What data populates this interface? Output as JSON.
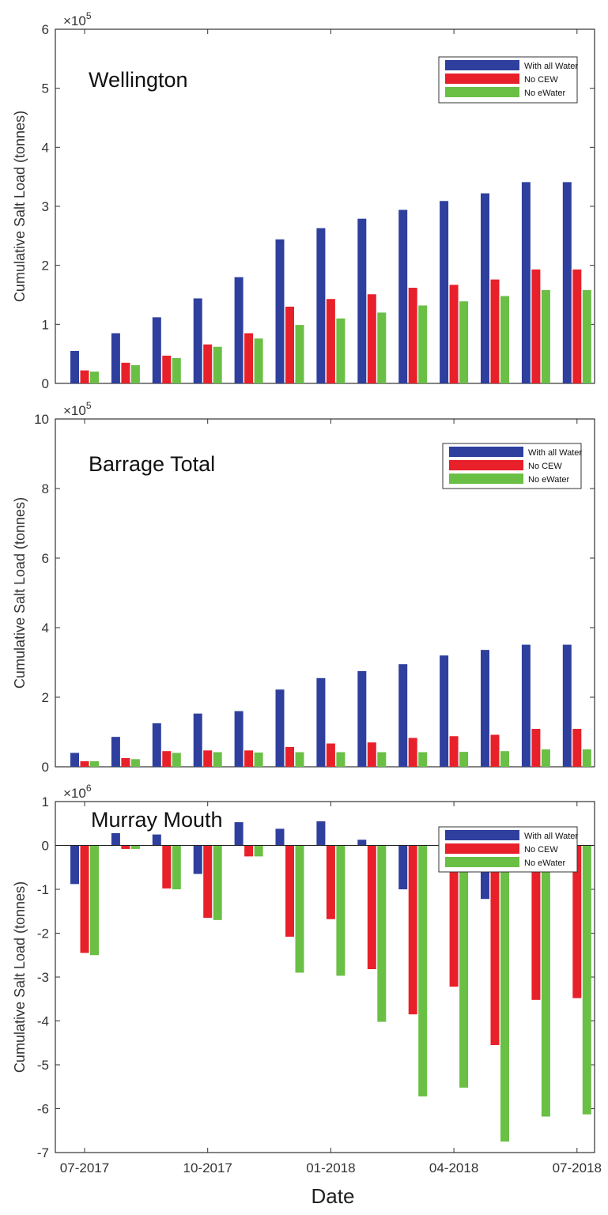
{
  "chart_data": [
    {
      "type": "bar",
      "title": "Wellington",
      "ylabel": "Cumulative Salt Load  (tonnes)",
      "exponent_base": "×10",
      "exponent_power": "5",
      "ylim": [
        0,
        6
      ],
      "yticks": [
        0,
        1,
        2,
        3,
        4,
        5,
        6
      ],
      "x": [
        "Jul 2017",
        "Aug 2017",
        "Sep 2017",
        "Oct 2017",
        "Nov 2017",
        "Dec 2017",
        "Jan 2018",
        "Feb 2018",
        "Mar 2018",
        "Apr 2018",
        "May 2018",
        "Jun 2018",
        "Jul 2018"
      ],
      "legend_position": "top-right",
      "series": [
        {
          "name": "With all Water",
          "color": "#2e3f9e",
          "values": [
            0.55,
            0.85,
            1.12,
            1.44,
            1.8,
            2.44,
            2.63,
            2.79,
            2.94,
            3.09,
            3.22,
            3.41,
            3.41
          ]
        },
        {
          "name": "No CEW",
          "color": "#e8202a",
          "values": [
            0.22,
            0.35,
            0.47,
            0.66,
            0.85,
            1.3,
            1.43,
            1.51,
            1.62,
            1.67,
            1.76,
            1.93,
            1.93
          ]
        },
        {
          "name": "No eWater",
          "color": "#6abf45",
          "values": [
            0.2,
            0.31,
            0.43,
            0.62,
            0.76,
            0.99,
            1.1,
            1.2,
            1.32,
            1.39,
            1.48,
            1.58,
            1.58
          ]
        }
      ]
    },
    {
      "type": "bar",
      "title": "Barrage Total",
      "ylabel": "Cumulative Salt Load  (tonnes)",
      "exponent_base": "×10",
      "exponent_power": "5",
      "ylim": [
        0,
        10
      ],
      "yticks": [
        0,
        2,
        4,
        6,
        8,
        10
      ],
      "x": [
        "Jul 2017",
        "Aug 2017",
        "Sep 2017",
        "Oct 2017",
        "Nov 2017",
        "Dec 2017",
        "Jan 2018",
        "Feb 2018",
        "Mar 2018",
        "Apr 2018",
        "May 2018",
        "Jun 2018",
        "Jul 2018"
      ],
      "legend_position": "top-right",
      "series": [
        {
          "name": "With all Water",
          "color": "#2e3f9e",
          "values": [
            0.4,
            0.86,
            1.25,
            1.53,
            1.6,
            2.22,
            2.55,
            2.75,
            2.95,
            3.2,
            3.36,
            3.51,
            3.51
          ]
        },
        {
          "name": "No CEW",
          "color": "#e8202a",
          "values": [
            0.16,
            0.25,
            0.45,
            0.47,
            0.47,
            0.57,
            0.67,
            0.7,
            0.83,
            0.88,
            0.92,
            1.09,
            1.09
          ]
        },
        {
          "name": "No eWater",
          "color": "#6abf45",
          "values": [
            0.16,
            0.22,
            0.4,
            0.42,
            0.41,
            0.42,
            0.42,
            0.42,
            0.42,
            0.43,
            0.45,
            0.5,
            0.5
          ]
        }
      ]
    },
    {
      "type": "bar",
      "title": "Murray Mouth",
      "ylabel": "Cumulative Salt Load  (tonnes)",
      "xlabel": "Date",
      "exponent_base": "×10",
      "exponent_power": "6",
      "ylim": [
        -7,
        1
      ],
      "yticks": [
        -7,
        -6,
        -5,
        -4,
        -3,
        -2,
        -1,
        0,
        1
      ],
      "x": [
        "Jul 2017",
        "Aug 2017",
        "Sep 2017",
        "Oct 2017",
        "Nov 2017",
        "Dec 2017",
        "Jan 2018",
        "Feb 2018",
        "Mar 2018",
        "Apr 2018",
        "May 2018",
        "Jun 2018",
        "Jul 2018"
      ],
      "xtick_labels": [
        "07-2017",
        "10-2017",
        "01-2018",
        "04-2018",
        "07-2018"
      ],
      "xtick_indices": [
        0,
        3,
        6,
        9,
        12
      ],
      "legend_position": "top-right",
      "series": [
        {
          "name": "With all Water",
          "color": "#2e3f9e",
          "values": [
            -0.88,
            0.28,
            0.25,
            -0.65,
            0.53,
            0.38,
            0.55,
            0.13,
            -1.0,
            -0.28,
            -1.22,
            -0.02,
            -0.02
          ]
        },
        {
          "name": "No CEW",
          "color": "#e8202a",
          "values": [
            -2.45,
            -0.08,
            -0.98,
            -1.65,
            -0.25,
            -2.08,
            -1.68,
            -2.82,
            -3.85,
            -3.22,
            -4.55,
            -3.52,
            -3.48
          ]
        },
        {
          "name": "No eWater",
          "color": "#6abf45",
          "values": [
            -2.5,
            -0.08,
            -1.0,
            -1.7,
            -0.25,
            -2.9,
            -2.97,
            -4.02,
            -5.72,
            -5.52,
            -6.75,
            -6.18,
            -6.13
          ]
        }
      ]
    }
  ]
}
